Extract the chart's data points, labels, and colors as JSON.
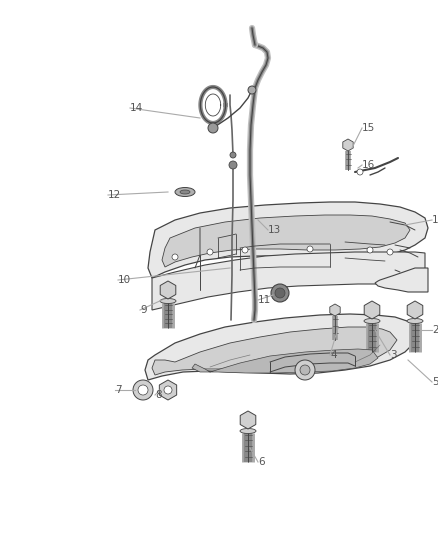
{
  "background_color": "#ffffff",
  "figsize": [
    4.38,
    5.33
  ],
  "dpi": 100,
  "line_color": "#aaaaaa",
  "label_color": "#555555",
  "label_fontsize": 7.5,
  "part_edge": "#444444",
  "part_fill_light": "#e8e8e8",
  "part_fill_mid": "#d0d0d0",
  "part_fill_dark": "#b8b8b8"
}
